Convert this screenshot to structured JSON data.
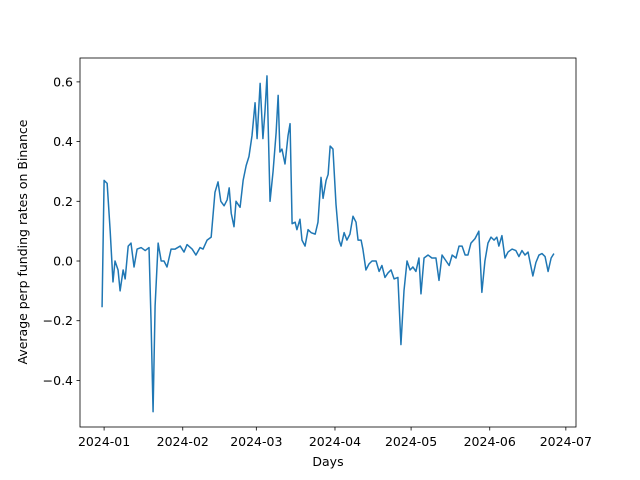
{
  "chart_data": {
    "type": "line",
    "xlabel": "Days",
    "ylabel": "Average perp funding rates on Binance",
    "color": "#1f77b4",
    "x": [
      -0.8,
      0,
      1.2,
      2.4,
      3.5,
      4.3,
      5.5,
      6.3,
      7.5,
      8.3,
      9.5,
      10.6,
      11.8,
      13,
      14.6,
      16.2,
      17.7,
      18.5,
      19.3,
      20.1,
      21.3,
      22.5,
      23.6,
      24.8,
      26.4,
      28,
      30,
      31.5,
      32.7,
      34.7,
      36.2,
      37.8,
      39,
      40.6,
      42.2,
      43.7,
      44.9,
      46,
      47.3,
      48.5,
      49.3,
      50.1,
      51.2,
      52,
      53.6,
      54.8,
      56,
      57.1,
      58.3,
      59.5,
      60.3,
      61.5,
      62.6,
      63.4,
      64.2,
      65.4,
      66.6,
      67.8,
      68.6,
      69.3,
      70.1,
      71.3,
      72.5,
      73.3,
      74.1,
      75.3,
      76,
      77.2,
      78,
      79.2,
      80.4,
      81.6,
      83.2,
      84.3,
      85.5,
      86.3,
      87.5,
      88.3,
      89.1,
      90.2,
      91.4,
      92.6,
      93.4,
      94.6,
      95.7,
      96.9,
      98.1,
      99.3,
      100.1,
      101.3,
      102,
      103.2,
      104.4,
      105.6,
      107.2,
      108.4,
      109.5,
      110.7,
      111.9,
      113.1,
      114.3,
      115.8,
      117,
      118.2,
      119.4,
      120.6,
      121.7,
      122.9,
      124.1,
      124.9,
      126.1,
      127.7,
      129.2,
      130.8,
      132,
      133.2,
      134.8,
      136,
      137.2,
      138.7,
      139.9,
      141.1,
      142.3,
      143.4,
      144.6,
      146.2,
      147.7,
      148.9,
      150.1,
      151.3,
      152.5,
      153.7,
      154.8,
      155.6,
      156.8,
      158,
      159.2,
      160.8,
      162.3,
      163.5,
      164.7,
      165.9,
      167.1,
      167.8,
      169,
      170.2,
      171.4,
      172.6,
      173.8,
      175,
      176.2,
      177.3
    ],
    "values": [
      -0.155,
      0.27,
      0.26,
      0.1,
      -0.07,
      0.0,
      -0.03,
      -0.1,
      -0.03,
      -0.06,
      0.05,
      0.06,
      -0.02,
      0.04,
      0.045,
      0.035,
      0.045,
      -0.2,
      -0.505,
      -0.15,
      0.06,
      0.0,
      0.0,
      -0.02,
      0.04,
      0.04,
      0.05,
      0.03,
      0.055,
      0.04,
      0.02,
      0.045,
      0.04,
      0.07,
      0.08,
      0.23,
      0.265,
      0.2,
      0.185,
      0.205,
      0.245,
      0.16,
      0.115,
      0.2,
      0.18,
      0.27,
      0.32,
      0.35,
      0.42,
      0.53,
      0.41,
      0.595,
      0.41,
      0.5,
      0.62,
      0.2,
      0.3,
      0.43,
      0.555,
      0.365,
      0.375,
      0.325,
      0.42,
      0.46,
      0.125,
      0.13,
      0.105,
      0.14,
      0.07,
      0.05,
      0.105,
      0.095,
      0.09,
      0.13,
      0.28,
      0.21,
      0.27,
      0.29,
      0.385,
      0.375,
      0.19,
      0.07,
      0.05,
      0.095,
      0.07,
      0.09,
      0.15,
      0.13,
      0.07,
      0.07,
      0.04,
      -0.03,
      -0.01,
      0.0,
      0.0,
      -0.035,
      -0.015,
      -0.055,
      -0.04,
      -0.03,
      -0.06,
      -0.055,
      -0.28,
      -0.1,
      0.0,
      -0.03,
      -0.02,
      -0.035,
      0.01,
      -0.11,
      0.01,
      0.02,
      0.01,
      0.01,
      -0.065,
      0.02,
      0.0,
      -0.015,
      0.02,
      0.01,
      0.05,
      0.05,
      0.02,
      0.02,
      0.06,
      0.075,
      0.1,
      -0.105,
      0.0,
      0.06,
      0.08,
      0.07,
      0.08,
      0.05,
      0.085,
      0.01,
      0.03,
      0.04,
      0.035,
      0.015,
      0.035,
      0.02,
      0.03,
      0.0,
      -0.05,
      -0.005,
      0.02,
      0.025,
      0.015,
      -0.035,
      0.01,
      0.025
    ],
    "xlim": [
      -9.5,
      186
    ],
    "ylim": [
      -0.556,
      0.68
    ],
    "xticks": [
      {
        "value": 0,
        "label": "2024-01"
      },
      {
        "value": 31,
        "label": "2024-02"
      },
      {
        "value": 60,
        "label": "2024-03"
      },
      {
        "value": 91,
        "label": "2024-04"
      },
      {
        "value": 121,
        "label": "2024-05"
      },
      {
        "value": 152,
        "label": "2024-06"
      },
      {
        "value": 182,
        "label": "2024-07"
      }
    ],
    "yticks": [
      {
        "value": -0.4,
        "label": "−0.4"
      },
      {
        "value": -0.2,
        "label": "−0.2"
      },
      {
        "value": 0,
        "label": "0.0"
      },
      0.2,
      0.4,
      0.6
    ]
  }
}
